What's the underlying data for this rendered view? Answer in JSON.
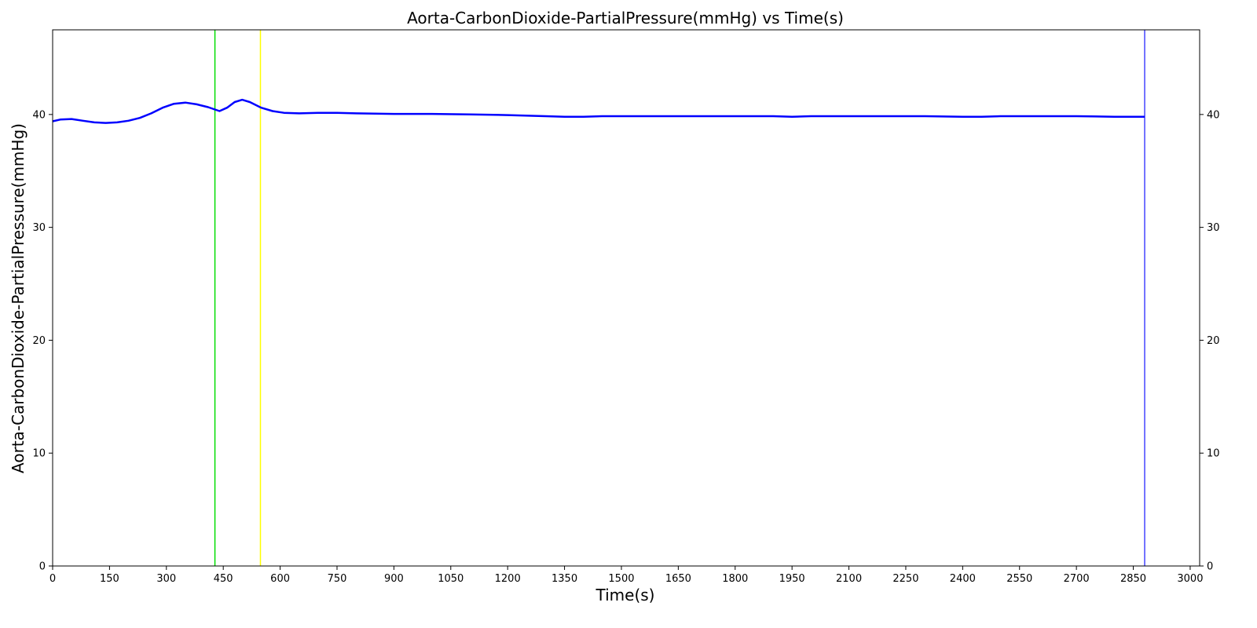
{
  "chart_data": {
    "type": "line",
    "title": "Aorta-CarbonDioxide-PartialPressure(mmHg) vs Time(s)",
    "xlabel": "Time(s)",
    "ylabel": "Aorta-CarbonDioxide-PartialPressure(mmHg)",
    "xlim": [
      0,
      3025
    ],
    "ylim": [
      0,
      47.5
    ],
    "x_ticks": [
      0,
      150,
      300,
      450,
      600,
      750,
      900,
      1050,
      1200,
      1350,
      1500,
      1650,
      1800,
      1950,
      2100,
      2250,
      2400,
      2550,
      2700,
      2850,
      3000
    ],
    "y_ticks": [
      0,
      10,
      20,
      30,
      40
    ],
    "y_ticks_right": [
      0,
      10,
      20,
      30,
      40
    ],
    "grid": false,
    "legend": "none",
    "series": [
      {
        "color": "#0000ff",
        "x": [
          0,
          20,
          50,
          80,
          110,
          140,
          170,
          200,
          230,
          260,
          290,
          320,
          350,
          380,
          410,
          440,
          460,
          480,
          500,
          520,
          550,
          580,
          610,
          650,
          700,
          750,
          800,
          900,
          1000,
          1100,
          1200,
          1300,
          1350,
          1400,
          1450,
          1500,
          1550,
          1600,
          1700,
          1800,
          1900,
          1950,
          2000,
          2100,
          2200,
          2300,
          2400,
          2450,
          2500,
          2600,
          2700,
          2800,
          2880
        ],
        "y": [
          39.4,
          39.55,
          39.6,
          39.45,
          39.3,
          39.25,
          39.3,
          39.45,
          39.7,
          40.1,
          40.6,
          40.95,
          41.05,
          40.9,
          40.65,
          40.3,
          40.6,
          41.1,
          41.3,
          41.1,
          40.6,
          40.3,
          40.15,
          40.1,
          40.15,
          40.15,
          40.1,
          40.05,
          40.05,
          40.0,
          39.95,
          39.85,
          39.8,
          39.8,
          39.85,
          39.85,
          39.85,
          39.85,
          39.85,
          39.85,
          39.85,
          39.8,
          39.85,
          39.85,
          39.85,
          39.85,
          39.8,
          39.8,
          39.85,
          39.85,
          39.85,
          39.8,
          39.8
        ]
      }
    ],
    "vertical_lines": [
      {
        "x": 428,
        "color": "#00dd00"
      },
      {
        "x": 548,
        "color": "#ffff00"
      },
      {
        "x": 2880,
        "color": "#4444ff"
      }
    ]
  }
}
